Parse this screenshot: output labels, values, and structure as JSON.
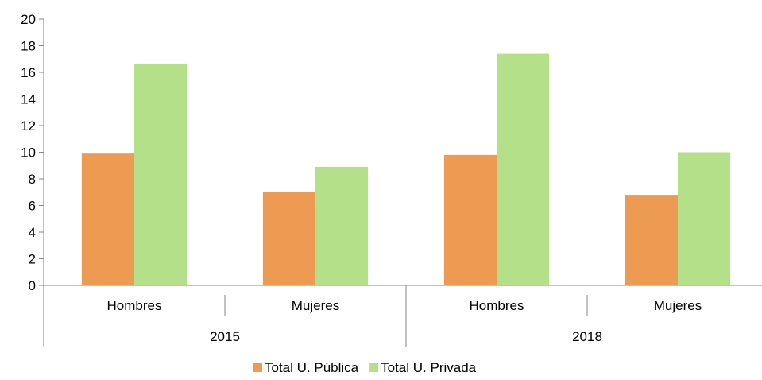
{
  "chart_data": {
    "type": "bar",
    "groups": [
      {
        "label": "2015",
        "categories": [
          "Hombres",
          "Mujeres"
        ]
      },
      {
        "label": "2018",
        "categories": [
          "Hombres",
          "Mujeres"
        ]
      }
    ],
    "series": [
      {
        "name": "Total U. Pública",
        "color": "#ED9A53",
        "values": [
          9.9,
          7.0,
          9.8,
          6.8
        ]
      },
      {
        "name": "Total U. Privada",
        "color": "#B4E08A",
        "values": [
          16.6,
          8.9,
          17.4,
          10.0
        ]
      }
    ],
    "ylim": [
      0,
      20
    ],
    "yticks": [
      0,
      2,
      4,
      6,
      8,
      10,
      12,
      14,
      16,
      18,
      20
    ],
    "legend_position": "bottom",
    "grid": false
  }
}
